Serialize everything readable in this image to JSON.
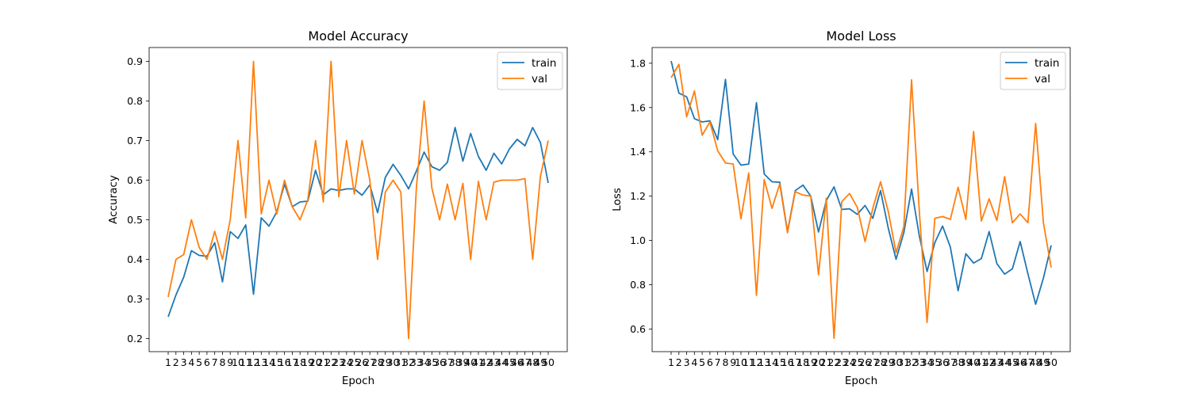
{
  "chart_data": [
    {
      "type": "line",
      "title": "Model Accuracy",
      "xlabel": "Epoch",
      "ylabel": "Accuracy",
      "categories": [
        "1",
        "2",
        "3",
        "4",
        "5",
        "6",
        "7",
        "8",
        "9",
        "10",
        "11",
        "12",
        "13",
        "14",
        "15",
        "16",
        "17",
        "18",
        "19",
        "20",
        "21",
        "22",
        "23",
        "24",
        "25",
        "26",
        "27",
        "28",
        "29",
        "30",
        "31",
        "32",
        "33",
        "34",
        "35",
        "36",
        "37",
        "38",
        "39",
        "40",
        "41",
        "42",
        "43",
        "44",
        "45",
        "46",
        "47",
        "48",
        "49",
        "50"
      ],
      "ylim": [
        0.167,
        0.935
      ],
      "yticks": [
        0.2,
        0.3,
        0.4,
        0.5,
        0.6,
        0.7,
        0.8,
        0.9
      ],
      "legend_position": "top-right",
      "grid": false,
      "series": [
        {
          "name": "train",
          "color": "#1f77b4",
          "values": [
            0.255,
            0.31,
            0.355,
            0.422,
            0.41,
            0.408,
            0.442,
            0.343,
            0.47,
            0.453,
            0.487,
            0.312,
            0.505,
            0.484,
            0.52,
            0.59,
            0.533,
            0.545,
            0.547,
            0.625,
            0.563,
            0.578,
            0.574,
            0.578,
            0.578,
            0.562,
            0.588,
            0.518,
            0.607,
            0.64,
            0.612,
            0.578,
            0.623,
            0.671,
            0.634,
            0.625,
            0.645,
            0.733,
            0.648,
            0.718,
            0.66,
            0.625,
            0.668,
            0.641,
            0.679,
            0.703,
            0.687,
            0.733,
            0.695,
            0.593
          ]
        },
        {
          "name": "val",
          "color": "#ff7f0e",
          "values": [
            0.305,
            0.4,
            0.412,
            0.5,
            0.43,
            0.4,
            0.471,
            0.4,
            0.5,
            0.7,
            0.505,
            0.9,
            0.515,
            0.6,
            0.515,
            0.6,
            0.533,
            0.5,
            0.55,
            0.7,
            0.545,
            0.9,
            0.558,
            0.7,
            0.565,
            0.7,
            0.6,
            0.4,
            0.57,
            0.6,
            0.57,
            0.2,
            0.58,
            0.8,
            0.58,
            0.5,
            0.59,
            0.5,
            0.592,
            0.4,
            0.597,
            0.5,
            0.595,
            0.6,
            0.6,
            0.6,
            0.604,
            0.4,
            0.61,
            0.7
          ]
        }
      ]
    },
    {
      "type": "line",
      "title": "Model Loss",
      "xlabel": "Epoch",
      "ylabel": "Loss",
      "categories": [
        "1",
        "2",
        "3",
        "4",
        "5",
        "6",
        "7",
        "8",
        "9",
        "10",
        "11",
        "12",
        "13",
        "14",
        "15",
        "16",
        "17",
        "18",
        "19",
        "20",
        "21",
        "22",
        "23",
        "24",
        "25",
        "26",
        "27",
        "28",
        "29",
        "30",
        "31",
        "32",
        "33",
        "34",
        "35",
        "36",
        "37",
        "38",
        "39",
        "40",
        "41",
        "42",
        "43",
        "44",
        "45",
        "46",
        "47",
        "48",
        "49",
        "50"
      ],
      "ylim": [
        0.498,
        1.871
      ],
      "yticks": [
        0.6,
        0.8,
        1.0,
        1.2,
        1.4,
        1.6,
        1.8
      ],
      "ytick_labels": [
        "0.6",
        "0.8",
        "1.0",
        "1.2",
        "1.4",
        "1.6",
        "1.8"
      ],
      "legend_position": "top-right",
      "grid": false,
      "series": [
        {
          "name": "train",
          "color": "#1f77b4",
          "values": [
            1.81,
            1.665,
            1.648,
            1.55,
            1.535,
            1.54,
            1.455,
            1.727,
            1.39,
            1.34,
            1.345,
            1.622,
            1.3,
            1.265,
            1.263,
            1.04,
            1.225,
            1.25,
            1.2,
            1.038,
            1.18,
            1.242,
            1.14,
            1.143,
            1.118,
            1.158,
            1.1,
            1.225,
            1.055,
            0.915,
            1.035,
            1.232,
            1.02,
            0.86,
            0.99,
            1.065,
            0.97,
            0.773,
            0.94,
            0.898,
            0.918,
            1.04,
            0.895,
            0.848,
            0.872,
            0.995,
            0.85,
            0.712,
            0.83,
            0.978
          ]
        },
        {
          "name": "val",
          "color": "#ff7f0e",
          "values": [
            1.735,
            1.795,
            1.558,
            1.675,
            1.475,
            1.535,
            1.405,
            1.35,
            1.345,
            1.098,
            1.305,
            0.752,
            1.275,
            1.145,
            1.255,
            1.035,
            1.22,
            1.205,
            1.2,
            0.845,
            1.19,
            0.558,
            1.175,
            1.212,
            1.15,
            0.995,
            1.145,
            1.265,
            1.13,
            0.945,
            1.062,
            1.725,
            1.13,
            0.63,
            1.1,
            1.108,
            1.095,
            1.24,
            1.095,
            1.492,
            1.088,
            1.188,
            1.09,
            1.288,
            1.08,
            1.12,
            1.08,
            1.528,
            1.08,
            0.878
          ]
        }
      ]
    }
  ]
}
